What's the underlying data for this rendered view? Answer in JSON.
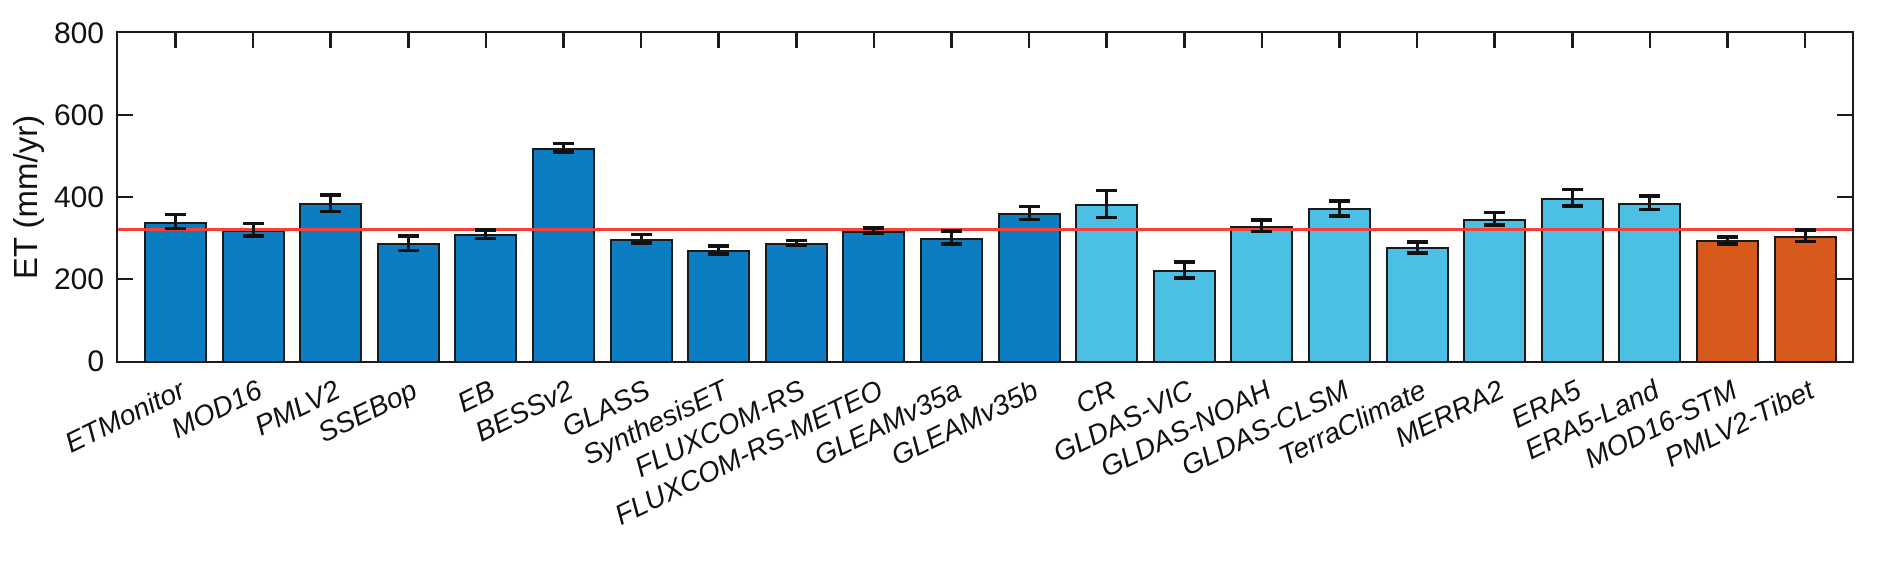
{
  "figure": {
    "background": "#ffffff",
    "axis_color": "#1a1a1a"
  },
  "chart_data": {
    "type": "bar",
    "title": "",
    "ylabel": "ET (mm/yr)",
    "xlabel": "",
    "ylim": [
      0,
      800
    ],
    "yticks": [
      0,
      200,
      400,
      600,
      800
    ],
    "grid": false,
    "legend_position": "none",
    "x_tick_label_rotation_deg": -26,
    "error_bars": true,
    "reference_line": {
      "value": 320,
      "color": "#f5413c"
    },
    "categories": [
      "ETMonitor",
      "MOD16",
      "PMLV2",
      "SSEBop",
      "EB",
      "BESSv2",
      "GLASS",
      "SynthesisET",
      "FLUXCOM-RS",
      "FLUXCOM-RS-METEO",
      "GLEAMv35a",
      "GLEAMv35b",
      "CR",
      "GLDAS-VIC",
      "GLDAS-NOAH",
      "GLDAS-CLSM",
      "TerraClimate",
      "MERRA2",
      "ERA5",
      "ERA5-Land",
      "MOD16-STM",
      "PMLV2-Tibet"
    ],
    "values": [
      340,
      320,
      385,
      287,
      309,
      520,
      298,
      271,
      288,
      318,
      301,
      361,
      383,
      222,
      330,
      372,
      277,
      347,
      398,
      386,
      294,
      306
    ],
    "errors": [
      17,
      15,
      20,
      18,
      10,
      10,
      10,
      10,
      6,
      6,
      16,
      16,
      33,
      20,
      14,
      18,
      13,
      15,
      20,
      16,
      8,
      14
    ],
    "bar_groups": [
      "dark_blue",
      "dark_blue",
      "dark_blue",
      "dark_blue",
      "dark_blue",
      "dark_blue",
      "dark_blue",
      "dark_blue",
      "dark_blue",
      "dark_blue",
      "dark_blue",
      "dark_blue",
      "light_blue",
      "light_blue",
      "light_blue",
      "light_blue",
      "light_blue",
      "light_blue",
      "light_blue",
      "light_blue",
      "orange",
      "orange"
    ],
    "group_colors": {
      "dark_blue": "#0d7dc1",
      "light_blue": "#4cbfe4",
      "orange": "#d65a1b"
    },
    "bar_edge_color": "#1a1a1a"
  }
}
